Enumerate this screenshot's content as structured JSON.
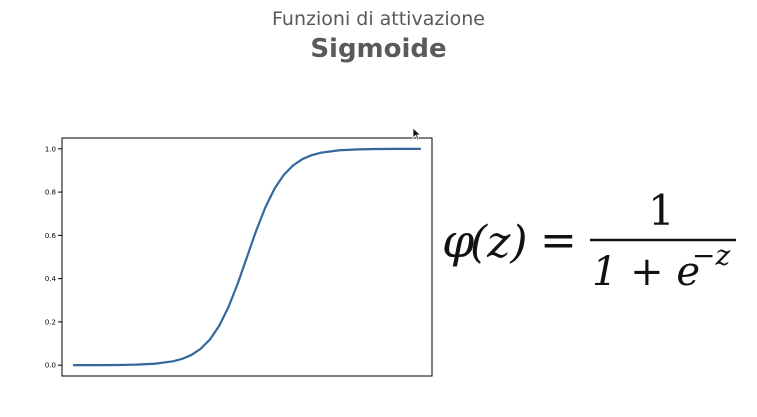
{
  "slide": {
    "subtitle": "Funzioni di attivazione",
    "title": "Sigmoide"
  },
  "formula": {
    "lhs_func": "φ",
    "lhs_arg": "(z)",
    "equals": "=",
    "numerator": "1",
    "denominator_base": "1 + e",
    "denominator_exponent": "−z"
  },
  "chart_data": {
    "type": "line",
    "title": "",
    "xlabel": "",
    "ylabel": "",
    "xlim": [
      -10,
      10
    ],
    "ylim": [
      -0.05,
      1.05
    ],
    "x_ticks_visible": false,
    "y_ticks": [
      0.0,
      0.2,
      0.4,
      0.6,
      0.8,
      1.0
    ],
    "y_tick_labels": [
      "0.0",
      "0.2",
      "0.4",
      "0.6",
      "0.8",
      "1.0"
    ],
    "grid": false,
    "series": [
      {
        "color": "#34679a",
        "x": [
          -9.4,
          -8,
          -7,
          -6,
          -5,
          -4,
          -3.5,
          -3,
          -2.5,
          -2,
          -1.5,
          -1,
          -0.5,
          0,
          0.5,
          1,
          1.5,
          2,
          2.5,
          3,
          3.5,
          4,
          5,
          6,
          7,
          8,
          9.4
        ],
        "y": [
          0.0001,
          0.0003,
          0.0009,
          0.0025,
          0.0067,
          0.018,
          0.0293,
          0.0474,
          0.0759,
          0.1192,
          0.1824,
          0.2689,
          0.3775,
          0.5,
          0.6225,
          0.7311,
          0.8176,
          0.8808,
          0.9241,
          0.9526,
          0.9707,
          0.982,
          0.9933,
          0.9975,
          0.9991,
          0.9997,
          0.9999
        ]
      }
    ]
  }
}
